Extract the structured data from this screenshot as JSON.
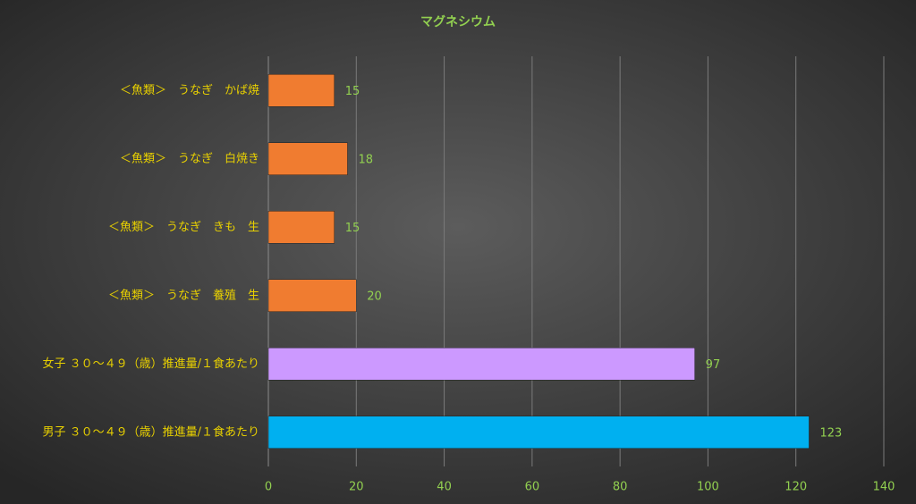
{
  "chart_data": {
    "type": "hbar",
    "title": "マグネシウム",
    "categories": [
      "＜魚類＞　うなぎ　かば焼",
      "＜魚類＞　うなぎ　白焼き",
      "＜魚類＞　うなぎ　きも　生",
      "＜魚類＞　うなぎ　養殖　生",
      "女子 ３０～４９（歳）推進量/１食あたり",
      "男子 ３０～４９（歳）推進量/１食あたり"
    ],
    "values": [
      15,
      18,
      15,
      20,
      97,
      123
    ],
    "colors": [
      "#f07c30",
      "#f07c30",
      "#f07c30",
      "#f07c30",
      "#cc99ff",
      "#00b0f0"
    ],
    "xlim": [
      0,
      140
    ],
    "xticks": [
      0,
      20,
      40,
      60,
      80,
      100,
      120,
      140
    ],
    "grid": true
  }
}
